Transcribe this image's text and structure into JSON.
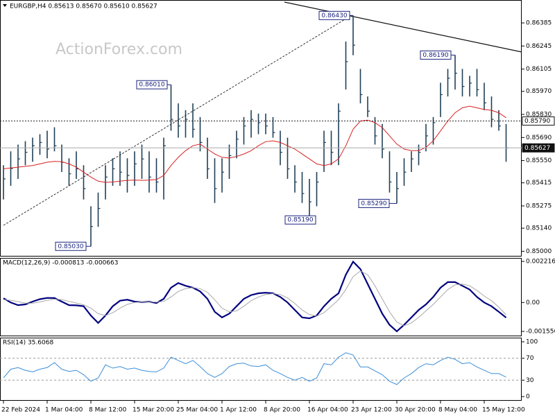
{
  "chart_data": [
    {
      "type": "ohlc",
      "title": "EURGBP,H4  0.85613 0.85670 0.85610 0.85627",
      "watermark": "ActionForex.com",
      "color": "#1f3f56",
      "categories": [
        "22 Feb 2024",
        null,
        null,
        null,
        null,
        null,
        "1 Mar 04:00",
        null,
        null,
        null,
        null,
        null,
        "8 Mar 12:00",
        null,
        null,
        null,
        null,
        null,
        "15 Mar 20:00",
        null,
        null,
        null,
        null,
        null,
        "25 Mar 04:00",
        null,
        null,
        null,
        null,
        null,
        "1 Apr 12:00",
        null,
        null,
        null,
        null,
        null,
        "8 Apr 20:00",
        null,
        null,
        null,
        null,
        null,
        "16 Apr 04:00",
        null,
        null,
        null,
        null,
        null,
        "23 Apr 12:00",
        null,
        null,
        null,
        null,
        null,
        "30 Apr 20:00",
        null,
        null,
        null,
        null,
        null,
        "8 May 04:00",
        null,
        null,
        null,
        null,
        null,
        "15 May 12:00",
        null,
        null,
        null
      ],
      "high": [
        0.85522,
        0.85606,
        0.85647,
        0.85668,
        0.85689,
        0.8571,
        0.85731,
        0.85752,
        0.85647,
        0.85564,
        0.85606,
        0.85522,
        0.85273,
        0.85356,
        0.85522,
        0.85564,
        0.85606,
        0.85564,
        0.85606,
        0.85647,
        0.85606,
        0.85564,
        0.85689,
        0.8601,
        0.85897,
        0.85856,
        0.85897,
        0.85814,
        0.85689,
        0.85564,
        0.85564,
        0.85647,
        0.85731,
        0.85814,
        0.85856,
        0.85835,
        0.85835,
        0.85814,
        0.85731,
        0.85689,
        0.85522,
        0.85481,
        0.85439,
        0.85481,
        0.85731,
        0.85731,
        0.85897,
        0.86272,
        0.8643,
        0.86106,
        0.85939,
        0.85814,
        0.85772,
        0.85606,
        0.85481,
        0.85564,
        0.85606,
        0.85647,
        0.85772,
        0.85814,
        0.86022,
        0.86106,
        0.8619,
        0.86106,
        0.86064,
        0.86106,
        0.86022,
        0.85939,
        0.85856,
        0.85772
      ],
      "low": [
        0.85314,
        0.85397,
        0.85439,
        0.85522,
        0.85543,
        0.85585,
        0.85564,
        0.85606,
        0.85481,
        0.85397,
        0.85439,
        0.85314,
        0.8503,
        0.85148,
        0.85314,
        0.85397,
        0.85397,
        0.85356,
        0.85397,
        0.85439,
        0.85356,
        0.85356,
        0.85314,
        0.85731,
        0.85689,
        0.85689,
        0.85689,
        0.85606,
        0.85439,
        0.85293,
        0.85356,
        0.85439,
        0.85564,
        0.85647,
        0.85689,
        0.8571,
        0.8571,
        0.85689,
        0.85522,
        0.85439,
        0.85356,
        0.85293,
        0.8519,
        0.85273,
        0.85481,
        0.85522,
        0.85522,
        0.85981,
        0.86189,
        0.85897,
        0.85814,
        0.85647,
        0.85564,
        0.85356,
        0.8529,
        0.85397,
        0.85481,
        0.85522,
        0.85606,
        0.85647,
        0.85814,
        0.85939,
        0.85981,
        0.85939,
        0.85939,
        0.85939,
        0.85856,
        0.85752,
        0.85731,
        0.85543
      ],
      "close": [
        0.85439,
        0.85502,
        0.8556,
        0.856,
        0.8564,
        0.8566,
        0.8562,
        0.8564,
        0.8554,
        0.8547,
        0.855,
        0.8538,
        0.8515,
        0.8526,
        0.8545,
        0.855,
        0.8548,
        0.8546,
        0.8553,
        0.8556,
        0.8545,
        0.8542,
        0.8564,
        0.858,
        0.8576,
        0.858,
        0.8574,
        0.8566,
        0.855,
        0.8538,
        0.8548,
        0.8558,
        0.8568,
        0.8576,
        0.858,
        0.8578,
        0.8576,
        0.8572,
        0.856,
        0.855,
        0.8542,
        0.8535,
        0.853,
        0.8542,
        0.8566,
        0.856,
        0.8585,
        0.8615,
        0.8625,
        0.8595,
        0.8585,
        0.857,
        0.8562,
        0.8542,
        0.8538,
        0.8548,
        0.8556,
        0.856,
        0.857,
        0.8578,
        0.8595,
        0.8605,
        0.8608,
        0.86,
        0.8602,
        0.8598,
        0.859,
        0.858,
        0.8576,
        0.85627
      ],
      "overlay": {
        "color": "#d62020",
        "values": [
          0.855,
          0.85505,
          0.8551,
          0.85515,
          0.8552,
          0.8553,
          0.8554,
          0.85545,
          0.85543,
          0.8553,
          0.8551,
          0.8548,
          0.8545,
          0.85425,
          0.85418,
          0.8542,
          0.85425,
          0.8543,
          0.85432,
          0.8543,
          0.85432,
          0.85435,
          0.8546,
          0.8552,
          0.8557,
          0.8561,
          0.8564,
          0.8565,
          0.8562,
          0.8559,
          0.8557,
          0.85565,
          0.85575,
          0.8559,
          0.8561,
          0.8564,
          0.85665,
          0.8567,
          0.8566,
          0.8564,
          0.8562,
          0.8559,
          0.8556,
          0.8553,
          0.8552,
          0.8553,
          0.8556,
          0.8564,
          0.8574,
          0.8579,
          0.85795,
          0.8578,
          0.8575,
          0.857,
          0.8565,
          0.8562,
          0.8561,
          0.8561,
          0.8563,
          0.8567,
          0.8573,
          0.8579,
          0.8584,
          0.8587,
          0.8588,
          0.8587,
          0.8586,
          0.85855,
          0.8584,
          0.8581
        ]
      },
      "ylim": [
        0.84968,
        0.86524
      ],
      "yticks": [
        {
          "value": 0.85,
          "label": "0.85000"
        },
        {
          "value": 0.8514,
          "label": "0.85140"
        },
        {
          "value": 0.85275,
          "label": "0.85275"
        },
        {
          "value": 0.85415,
          "label": "0.85415"
        },
        {
          "value": 0.8555,
          "label": "0.85550"
        },
        {
          "value": 0.8569,
          "label": "0.85690"
        },
        {
          "value": 0.8583,
          "label": "0.85830"
        },
        {
          "value": 0.8597,
          "label": "0.85970"
        },
        {
          "value": 0.86105,
          "label": "0.86105"
        },
        {
          "value": 0.86245,
          "label": "0.86245"
        },
        {
          "value": 0.86385,
          "label": "0.86385"
        }
      ],
      "annotations": [
        {
          "value": 0.8643,
          "label": "0.86430"
        },
        {
          "value": 0.8601,
          "label": "0.86010"
        },
        {
          "value": 0.8619,
          "label": "0.86190"
        },
        {
          "value": 0.8503,
          "label": "0.85030"
        },
        {
          "value": 0.8519,
          "label": "0.85190"
        },
        {
          "value": 0.8529,
          "label": "0.85290"
        }
      ],
      "levels": [
        {
          "value": 0.8579,
          "label": "0.85790"
        },
        {
          "value": 0.85627,
          "label": "0.85627"
        }
      ]
    },
    {
      "type": "line",
      "title": "MACD(12,26,9) -0.000813 -0.000663",
      "series": [
        {
          "color": "#00007f",
          "values": [
            0.00023,
            0.0,
            -0.00014,
            -0.0001,
            5e-05,
            0.00018,
            0.00025,
            0.00024,
            5e-05,
            -0.00014,
            -0.00015,
            -0.0002,
            -0.0007,
            -0.0011,
            -0.0007,
            -0.0002,
            0.0001,
            0.00015,
            5e-05,
            2e-05,
            5e-05,
            -3e-05,
            0.0002,
            0.0008,
            0.00105,
            0.0009,
            0.0008,
            0.0006,
            0.0002,
            -0.0005,
            -0.0008,
            -0.0006,
            -0.0002,
            0.0002,
            0.0004,
            0.0005,
            0.00053,
            0.0005,
            0.0003,
            0.0,
            -0.0004,
            -0.0008,
            -0.00085,
            -0.0007,
            -0.0002,
            0.0002,
            0.0005,
            0.0015,
            0.0022,
            0.0018,
            0.001,
            0.0002,
            -0.0006,
            -0.0012,
            -0.00155,
            -0.0012,
            -0.0008,
            -0.0004,
            -0.0001,
            0.0003,
            0.0008,
            0.0011,
            0.0011,
            0.0009,
            0.0007,
            0.0003,
            0.0,
            -0.0002,
            -0.0005,
            -0.000813
          ]
        },
        {
          "color": "#a8a8a8",
          "values": [
            0.00015,
            0.00012,
            5e-05,
            -3e-05,
            -4e-05,
            3e-05,
            0.00012,
            0.00018,
            0.00016,
            6e-05,
            -3e-05,
            -0.00012,
            -0.0003,
            -0.0006,
            -0.0007,
            -0.00055,
            -0.0003,
            -0.0001,
            0.0,
            3e-05,
            4e-05,
            2e-05,
            6e-05,
            0.0003,
            0.0006,
            0.00075,
            0.0008,
            0.00075,
            0.00055,
            0.00015,
            -0.0003,
            -0.0005,
            -0.00045,
            -0.0002,
            0.0001,
            0.0003,
            0.00043,
            0.00048,
            0.00043,
            0.00025,
            -5e-05,
            -0.0004,
            -0.00065,
            -0.00073,
            -0.00055,
            -0.0002,
            0.00015,
            0.0007,
            0.0014,
            0.0017,
            0.0015,
            0.0009,
            0.0002,
            -0.0005,
            -0.00105,
            -0.00125,
            -0.0011,
            -0.0008,
            -0.00045,
            -0.0001,
            0.0003,
            0.0007,
            0.00095,
            0.001,
            0.0009,
            0.00065,
            0.00035,
            0.0001,
            -0.00025,
            -0.000663
          ]
        }
      ],
      "ylim": [
        -0.001817,
        0.002403
      ],
      "yticks": [
        {
          "value": -0.001556,
          "label": "-0.001556"
        },
        {
          "value": 0,
          "label": "0.00"
        },
        0.002216
      ]
    },
    {
      "type": "line",
      "title": "RSI(14) 35.6068",
      "series": [
        {
          "color": "#3a8ed8",
          "values": [
            34,
            50,
            53,
            48,
            45,
            50,
            53,
            62,
            50,
            46,
            48,
            40,
            28,
            34,
            58,
            52,
            55,
            50,
            52,
            48,
            46,
            45,
            52,
            72,
            66,
            60,
            66,
            55,
            42,
            35,
            42,
            55,
            60,
            61,
            56,
            55,
            58,
            48,
            42,
            35,
            30,
            35,
            28,
            34,
            60,
            58,
            72,
            80,
            76,
            54,
            54,
            47,
            40,
            28,
            22,
            34,
            42,
            53,
            60,
            58,
            66,
            72,
            68,
            60,
            62,
            54,
            48,
            42,
            42,
            35.6068
          ]
        }
      ],
      "ylim": [
        -7.6,
        107.6
      ],
      "yticks": [
        0,
        30,
        70,
        100
      ],
      "levels": [
        70,
        30
      ]
    }
  ]
}
